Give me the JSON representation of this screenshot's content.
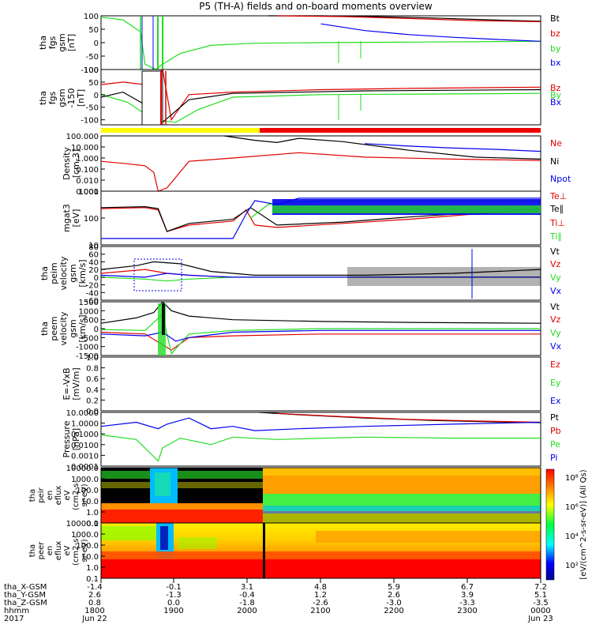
{
  "title": "P5 (TH-A) fields and on-board moments overview",
  "colors": {
    "black": "#000000",
    "red": "#e00000",
    "green": "#22dd22",
    "blue": "#0000ee",
    "yellow": "#ffff00",
    "barRed": "#ee0000"
  },
  "chart_data": [
    {
      "type": "line",
      "id": "fgs_gsm",
      "ylabel": [
        "tha",
        "fgs",
        "gsm",
        "[nT]"
      ],
      "ylim": [
        -100,
        100
      ],
      "yticks": [
        -100,
        -50,
        0,
        50,
        100
      ],
      "legend": [
        {
          "label": "Bt",
          "color": "black"
        },
        {
          "label": "bz",
          "color": "red"
        },
        {
          "label": "by",
          "color": "green"
        },
        {
          "label": "bx",
          "color": "blue"
        }
      ],
      "series": [
        {
          "name": "Bt",
          "color": "black",
          "x": [
            0.38,
            0.5,
            0.6,
            0.75,
            0.9,
            1.0
          ],
          "y": [
            100,
            100,
            98,
            92,
            84,
            80
          ]
        },
        {
          "name": "bz",
          "color": "red",
          "x": [
            0.4,
            0.55,
            0.7,
            0.85,
            1.0
          ],
          "y": [
            100,
            97,
            90,
            82,
            78
          ]
        },
        {
          "name": "by",
          "color": "green",
          "x": [
            0.0,
            0.05,
            0.09,
            0.1,
            0.125,
            0.14,
            0.18,
            0.25,
            0.35,
            0.5,
            0.7,
            1.0
          ],
          "y": [
            95,
            85,
            40,
            -80,
            -100,
            -80,
            -40,
            -10,
            -2,
            0,
            2,
            5
          ]
        },
        {
          "name": "bx",
          "color": "blue",
          "x": [
            0.5,
            0.6,
            0.7,
            0.8,
            0.9,
            1.0
          ],
          "y": [
            70,
            45,
            30,
            20,
            12,
            5
          ]
        }
      ]
    },
    {
      "type": "line",
      "id": "fgs_gse",
      "ylabel": [
        "tha",
        "fgs",
        "gsm",
        "-150",
        "[nT]"
      ],
      "ylim": [
        -120,
        100
      ],
      "yticks": [
        -100,
        -50,
        0,
        50,
        100
      ],
      "legend": [
        {
          "label": "Bz",
          "color": "red"
        },
        {
          "label": "By",
          "color": "green"
        },
        {
          "label": "Bx",
          "color": "blue"
        }
      ],
      "series": [
        {
          "name": "Bz",
          "color": "red",
          "x": [
            0.0,
            0.05,
            0.1,
            0.14,
            0.16,
            0.2,
            0.3,
            0.5,
            0.7,
            1.0
          ],
          "y": [
            40,
            50,
            40,
            100,
            -100,
            0,
            10,
            20,
            25,
            30
          ]
        },
        {
          "name": "By",
          "color": "green",
          "x": [
            0.0,
            0.06,
            0.12,
            0.17,
            0.22,
            0.3,
            0.5,
            1.0
          ],
          "y": [
            0,
            -30,
            -100,
            -110,
            -60,
            -10,
            0,
            5
          ]
        },
        {
          "name": "black",
          "color": "black",
          "x": [
            0.0,
            0.05,
            0.1,
            0.14,
            0.2,
            0.3,
            0.6,
            1.0
          ],
          "y": [
            -10,
            10,
            -40,
            -110,
            -20,
            5,
            15,
            20
          ]
        }
      ]
    },
    {
      "type": "bar",
      "id": "mode_bar",
      "segments": [
        {
          "from": 0.0,
          "to": 0.36,
          "color": "yellow"
        },
        {
          "from": 0.36,
          "to": 1.0,
          "color": "barRed"
        }
      ]
    },
    {
      "type": "line",
      "id": "density",
      "scale": "log",
      "ylabel": [
        "Density",
        "[cm-3]"
      ],
      "ylim": [
        0.001,
        100
      ],
      "yticks": [
        "0.001",
        "0.010",
        "0.100",
        "1.000",
        "10.000",
        "100.000"
      ],
      "legend": [
        {
          "label": "Ne",
          "color": "red"
        },
        {
          "label": "Ni",
          "color": "black"
        },
        {
          "label": "Npot",
          "color": "blue"
        }
      ],
      "series": [
        {
          "name": "Ne",
          "color": "red",
          "x": [
            0.0,
            0.06,
            0.1,
            0.12,
            0.13,
            0.15,
            0.2,
            0.3,
            0.45,
            0.6,
            0.8,
            1.0
          ],
          "y": [
            0.5,
            0.3,
            0.2,
            0.05,
            0.001,
            0.002,
            0.5,
            1.0,
            3.0,
            1.2,
            0.8,
            0.6
          ]
        },
        {
          "name": "Ni",
          "color": "black",
          "x": [
            0.28,
            0.35,
            0.4,
            0.45,
            0.55,
            0.7,
            0.85,
            1.0
          ],
          "y": [
            100,
            40,
            25,
            60,
            30,
            5,
            1.2,
            0.8
          ]
        },
        {
          "name": "Npot",
          "color": "blue",
          "x": [
            0.6,
            0.7,
            0.8,
            0.9,
            1.0
          ],
          "y": [
            20,
            12,
            8,
            6,
            4
          ]
        }
      ]
    },
    {
      "type": "line",
      "id": "mom_temp",
      "scale": "log",
      "ylabel": [
        "mgat3",
        "[eV]"
      ],
      "ylim": [
        1,
        10000
      ],
      "yticks": [
        "10",
        "100",
        "1000"
      ],
      "legend": [
        {
          "label": "Te⊥",
          "color": "red"
        },
        {
          "label": "Te∥",
          "color": "black"
        },
        {
          "label": "Ti⊥",
          "color": "red"
        },
        {
          "label": "Ti∥",
          "color": "green"
        }
      ],
      "series": [
        {
          "name": "Te",
          "color": "red",
          "x": [
            0.0,
            0.1,
            0.13,
            0.15,
            0.2,
            0.3,
            0.33,
            0.35,
            0.4,
            0.55,
            0.7,
            0.85,
            1.0
          ],
          "y": [
            500,
            600,
            400,
            10,
            30,
            60,
            400,
            30,
            20,
            40,
            80,
            200,
            400
          ]
        },
        {
          "name": "Tell",
          "color": "black",
          "x": [
            0.0,
            0.1,
            0.13,
            0.15,
            0.2,
            0.3,
            0.34,
            0.4,
            0.55,
            0.7,
            1.0
          ],
          "y": [
            600,
            700,
            500,
            10,
            40,
            80,
            600,
            30,
            50,
            120,
            500
          ]
        },
        {
          "name": "Ti",
          "color": "blue",
          "x": [
            0.0,
            0.3,
            0.33,
            0.35,
            0.4,
            0.45,
            0.6,
            0.8,
            1.0
          ],
          "y": [
            3,
            3,
            200,
            2000,
            1000,
            3000,
            3000,
            3000,
            3000
          ]
        },
        {
          "name": "Till",
          "color": "green",
          "x": [
            0.34,
            0.38,
            0.42,
            0.5,
            0.7,
            1.0
          ],
          "y": [
            100,
            1000,
            1500,
            1800,
            1800,
            1800
          ]
        }
      ]
    },
    {
      "type": "line",
      "id": "peim_vel",
      "ylabel": [
        "tha",
        "peim",
        "velocity",
        "gsm",
        "[km/s]"
      ],
      "ylim": [
        -60,
        80
      ],
      "yticks": [
        -60,
        -40,
        -20,
        0,
        20,
        40,
        60,
        80
      ],
      "legend": [
        {
          "label": "Vt",
          "color": "black"
        },
        {
          "label": "Vz",
          "color": "red"
        },
        {
          "label": "Vy",
          "color": "green"
        },
        {
          "label": "Vx",
          "color": "blue"
        }
      ],
      "series": [
        {
          "name": "Vt",
          "color": "black",
          "x": [
            0.0,
            0.08,
            0.12,
            0.18,
            0.25,
            0.35,
            0.6,
            0.8,
            1.0
          ],
          "y": [
            20,
            30,
            40,
            35,
            15,
            5,
            5,
            10,
            20
          ]
        },
        {
          "name": "Vz",
          "color": "red",
          "x": [
            0.0,
            0.1,
            0.15,
            0.2,
            0.3,
            0.5,
            1.0
          ],
          "y": [
            10,
            20,
            10,
            5,
            0,
            0,
            0
          ]
        },
        {
          "name": "Vy",
          "color": "green",
          "x": [
            0.0,
            0.1,
            0.15,
            0.2,
            0.3,
            0.5,
            1.0
          ],
          "y": [
            0,
            -5,
            -10,
            -5,
            0,
            0,
            0
          ]
        },
        {
          "name": "Vx",
          "color": "blue",
          "x": [
            0.0,
            0.1,
            0.15,
            0.2,
            0.3,
            0.5,
            1.0
          ],
          "y": [
            5,
            0,
            10,
            5,
            0,
            0,
            0
          ]
        }
      ]
    },
    {
      "type": "line",
      "id": "peem_vel",
      "ylabel": [
        "tha",
        "peem",
        "velocity",
        "gsm",
        "[km/s]"
      ],
      "ylim": [
        -1500,
        1500
      ],
      "yticks": [
        -1500,
        -1000,
        -500,
        0,
        500,
        1000,
        1500
      ],
      "legend": [
        {
          "label": "Vt",
          "color": "black"
        },
        {
          "label": "Vz",
          "color": "red"
        },
        {
          "label": "Vy",
          "color": "green"
        },
        {
          "label": "Vx",
          "color": "blue"
        }
      ],
      "series": [
        {
          "name": "Vt",
          "color": "black",
          "x": [
            0.0,
            0.08,
            0.12,
            0.14,
            0.16,
            0.2,
            0.3,
            0.5,
            0.7,
            1.0
          ],
          "y": [
            300,
            600,
            900,
            1500,
            1000,
            700,
            500,
            400,
            350,
            300
          ]
        },
        {
          "name": "Vz",
          "color": "red",
          "x": [
            0.0,
            0.1,
            0.14,
            0.16,
            0.2,
            0.3,
            0.5,
            1.0
          ],
          "y": [
            -200,
            -300,
            -900,
            -1200,
            -500,
            -400,
            -300,
            -300
          ]
        },
        {
          "name": "Vy",
          "color": "green",
          "x": [
            0.0,
            0.1,
            0.14,
            0.16,
            0.2,
            0.3,
            0.5,
            1.0
          ],
          "y": [
            -50,
            -100,
            800,
            -1400,
            -300,
            -100,
            0,
            0
          ]
        },
        {
          "name": "Vx",
          "color": "blue",
          "x": [
            0.0,
            0.1,
            0.14,
            0.17,
            0.2,
            0.3,
            0.5,
            1.0
          ],
          "y": [
            -300,
            -400,
            -200,
            -700,
            -500,
            -200,
            -100,
            -100
          ]
        }
      ]
    },
    {
      "type": "line",
      "id": "efield",
      "ylabel": [
        "E=-VxB",
        "[mV/m]"
      ],
      "ylim": [
        0,
        1
      ],
      "yticks": [
        "0.0",
        "0.2",
        "0.4",
        "0.6",
        "0.8",
        "1.0"
      ],
      "legend": [
        {
          "label": "Ez",
          "color": "red"
        },
        {
          "label": "Ey",
          "color": "green"
        },
        {
          "label": "Ex",
          "color": "blue"
        }
      ],
      "series": []
    },
    {
      "type": "line",
      "id": "pressure",
      "scale": "log",
      "ylabel": [
        "Pressure",
        "[nPa]"
      ],
      "ylim": [
        0.0001,
        10
      ],
      "yticks": [
        "0.0001",
        "0.0010",
        "0.0100",
        "0.1000",
        "1.0000",
        "10.0000"
      ],
      "legend": [
        {
          "label": "Pt",
          "color": "black"
        },
        {
          "label": "Pb",
          "color": "red"
        },
        {
          "label": "Pe",
          "color": "green"
        },
        {
          "label": "Pi",
          "color": "blue"
        }
      ],
      "series": [
        {
          "name": "Pt",
          "color": "black",
          "x": [
            0.36,
            0.45,
            0.6,
            0.75,
            0.9,
            1.0
          ],
          "y": [
            10,
            6,
            3,
            1.8,
            1.3,
            1.1
          ]
        },
        {
          "name": "Pb",
          "color": "red",
          "x": [
            0.4,
            0.55,
            0.7,
            0.85,
            1.0
          ],
          "y": [
            8,
            4,
            2.2,
            1.6,
            1.2
          ]
        },
        {
          "name": "Pe",
          "color": "green",
          "x": [
            0.0,
            0.08,
            0.13,
            0.14,
            0.18,
            0.25,
            0.3,
            0.4,
            0.6,
            0.8,
            1.0
          ],
          "y": [
            0.08,
            0.03,
            0.0003,
            0.005,
            0.04,
            0.01,
            0.05,
            0.03,
            0.05,
            0.04,
            0.04
          ]
        },
        {
          "name": "Pi",
          "color": "blue",
          "x": [
            0.0,
            0.08,
            0.13,
            0.15,
            0.2,
            0.25,
            0.3,
            0.35,
            0.45,
            0.6,
            0.8,
            1.0
          ],
          "y": [
            0.5,
            1.2,
            0.3,
            0.8,
            3,
            0.3,
            0.5,
            0.2,
            0.3,
            0.5,
            0.8,
            1.2
          ]
        }
      ]
    },
    {
      "type": "heatmap",
      "id": "peir_spec",
      "ylabel": [
        "tha",
        "peir",
        "en",
        "eflux",
        "eV",
        "(cm2-s-",
        "sr-eV)"
      ],
      "yticks": [
        "0.1",
        "1.0",
        "10.0",
        "100.0",
        "1000.0",
        "10000.0"
      ]
    },
    {
      "type": "heatmap",
      "id": "peer_spec",
      "ylabel": [
        "tha",
        "peer",
        "en",
        "eflux",
        "eV",
        "(cm2-s-",
        "sr-eV)"
      ],
      "yticks": [
        "0.1",
        "1.0",
        "10.0",
        "100.0",
        "1000.0",
        "10000.0"
      ]
    }
  ],
  "colorbar": {
    "label": "[eV/(cm^2-s-sr-eV)] (All Qs)",
    "ticks": [
      "10²",
      "10⁴",
      "10⁶",
      "10⁸"
    ]
  },
  "xaxis": {
    "rows": [
      {
        "label": "tha_X-GSM",
        "values": [
          "-1.4",
          "-0.1",
          "3.1",
          "4.8",
          "5.9",
          "6.7",
          "7.2"
        ]
      },
      {
        "label": "tha_Y-GSM",
        "values": [
          "2.6",
          "-1.3",
          "-0.4",
          "1.2",
          "2.6",
          "3.9",
          "5.1"
        ]
      },
      {
        "label": "tha_Z-GSM",
        "values": [
          "0.8",
          "0.0",
          "-1.8",
          "-2.6",
          "-3.0",
          "-3.3",
          "-3.5"
        ]
      },
      {
        "label": "hhmm",
        "values": [
          "1800",
          "1900",
          "2000",
          "2100",
          "2200",
          "2300",
          "0000"
        ]
      }
    ],
    "year": "2017",
    "date_start": "Jun 22",
    "date_end": "Jun 23"
  }
}
